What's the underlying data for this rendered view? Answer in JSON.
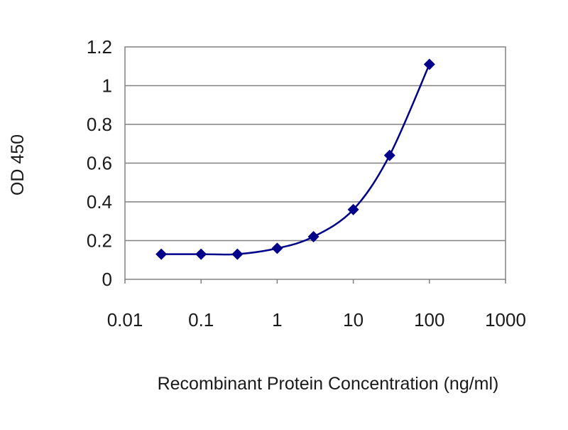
{
  "chart_data": {
    "type": "scatter",
    "title": "",
    "xlabel": "Recombinant Protein Concentration (ng/ml)",
    "ylabel": "OD 450",
    "xscale": "log",
    "xlim": [
      0.01,
      1000
    ],
    "ylim": [
      0,
      1.2
    ],
    "xticks": [
      "0.01",
      "0.1",
      "1",
      "10",
      "100",
      "1000"
    ],
    "yticks": [
      "0",
      "0.2",
      "0.4",
      "0.6",
      "0.8",
      "1",
      "1.2"
    ],
    "grid": "horizontal",
    "legend": "none",
    "series": [
      {
        "x": [
          0.03,
          0.1,
          0.3,
          1,
          3,
          10,
          30,
          100
        ],
        "y": [
          0.13,
          0.13,
          0.13,
          0.16,
          0.22,
          0.36,
          0.64,
          1.11
        ],
        "marker": "diamond",
        "color": "#00008b",
        "line": "smooth"
      }
    ],
    "colors": {
      "series": "#00008b",
      "grid": "#808080",
      "axis": "#808080"
    }
  }
}
